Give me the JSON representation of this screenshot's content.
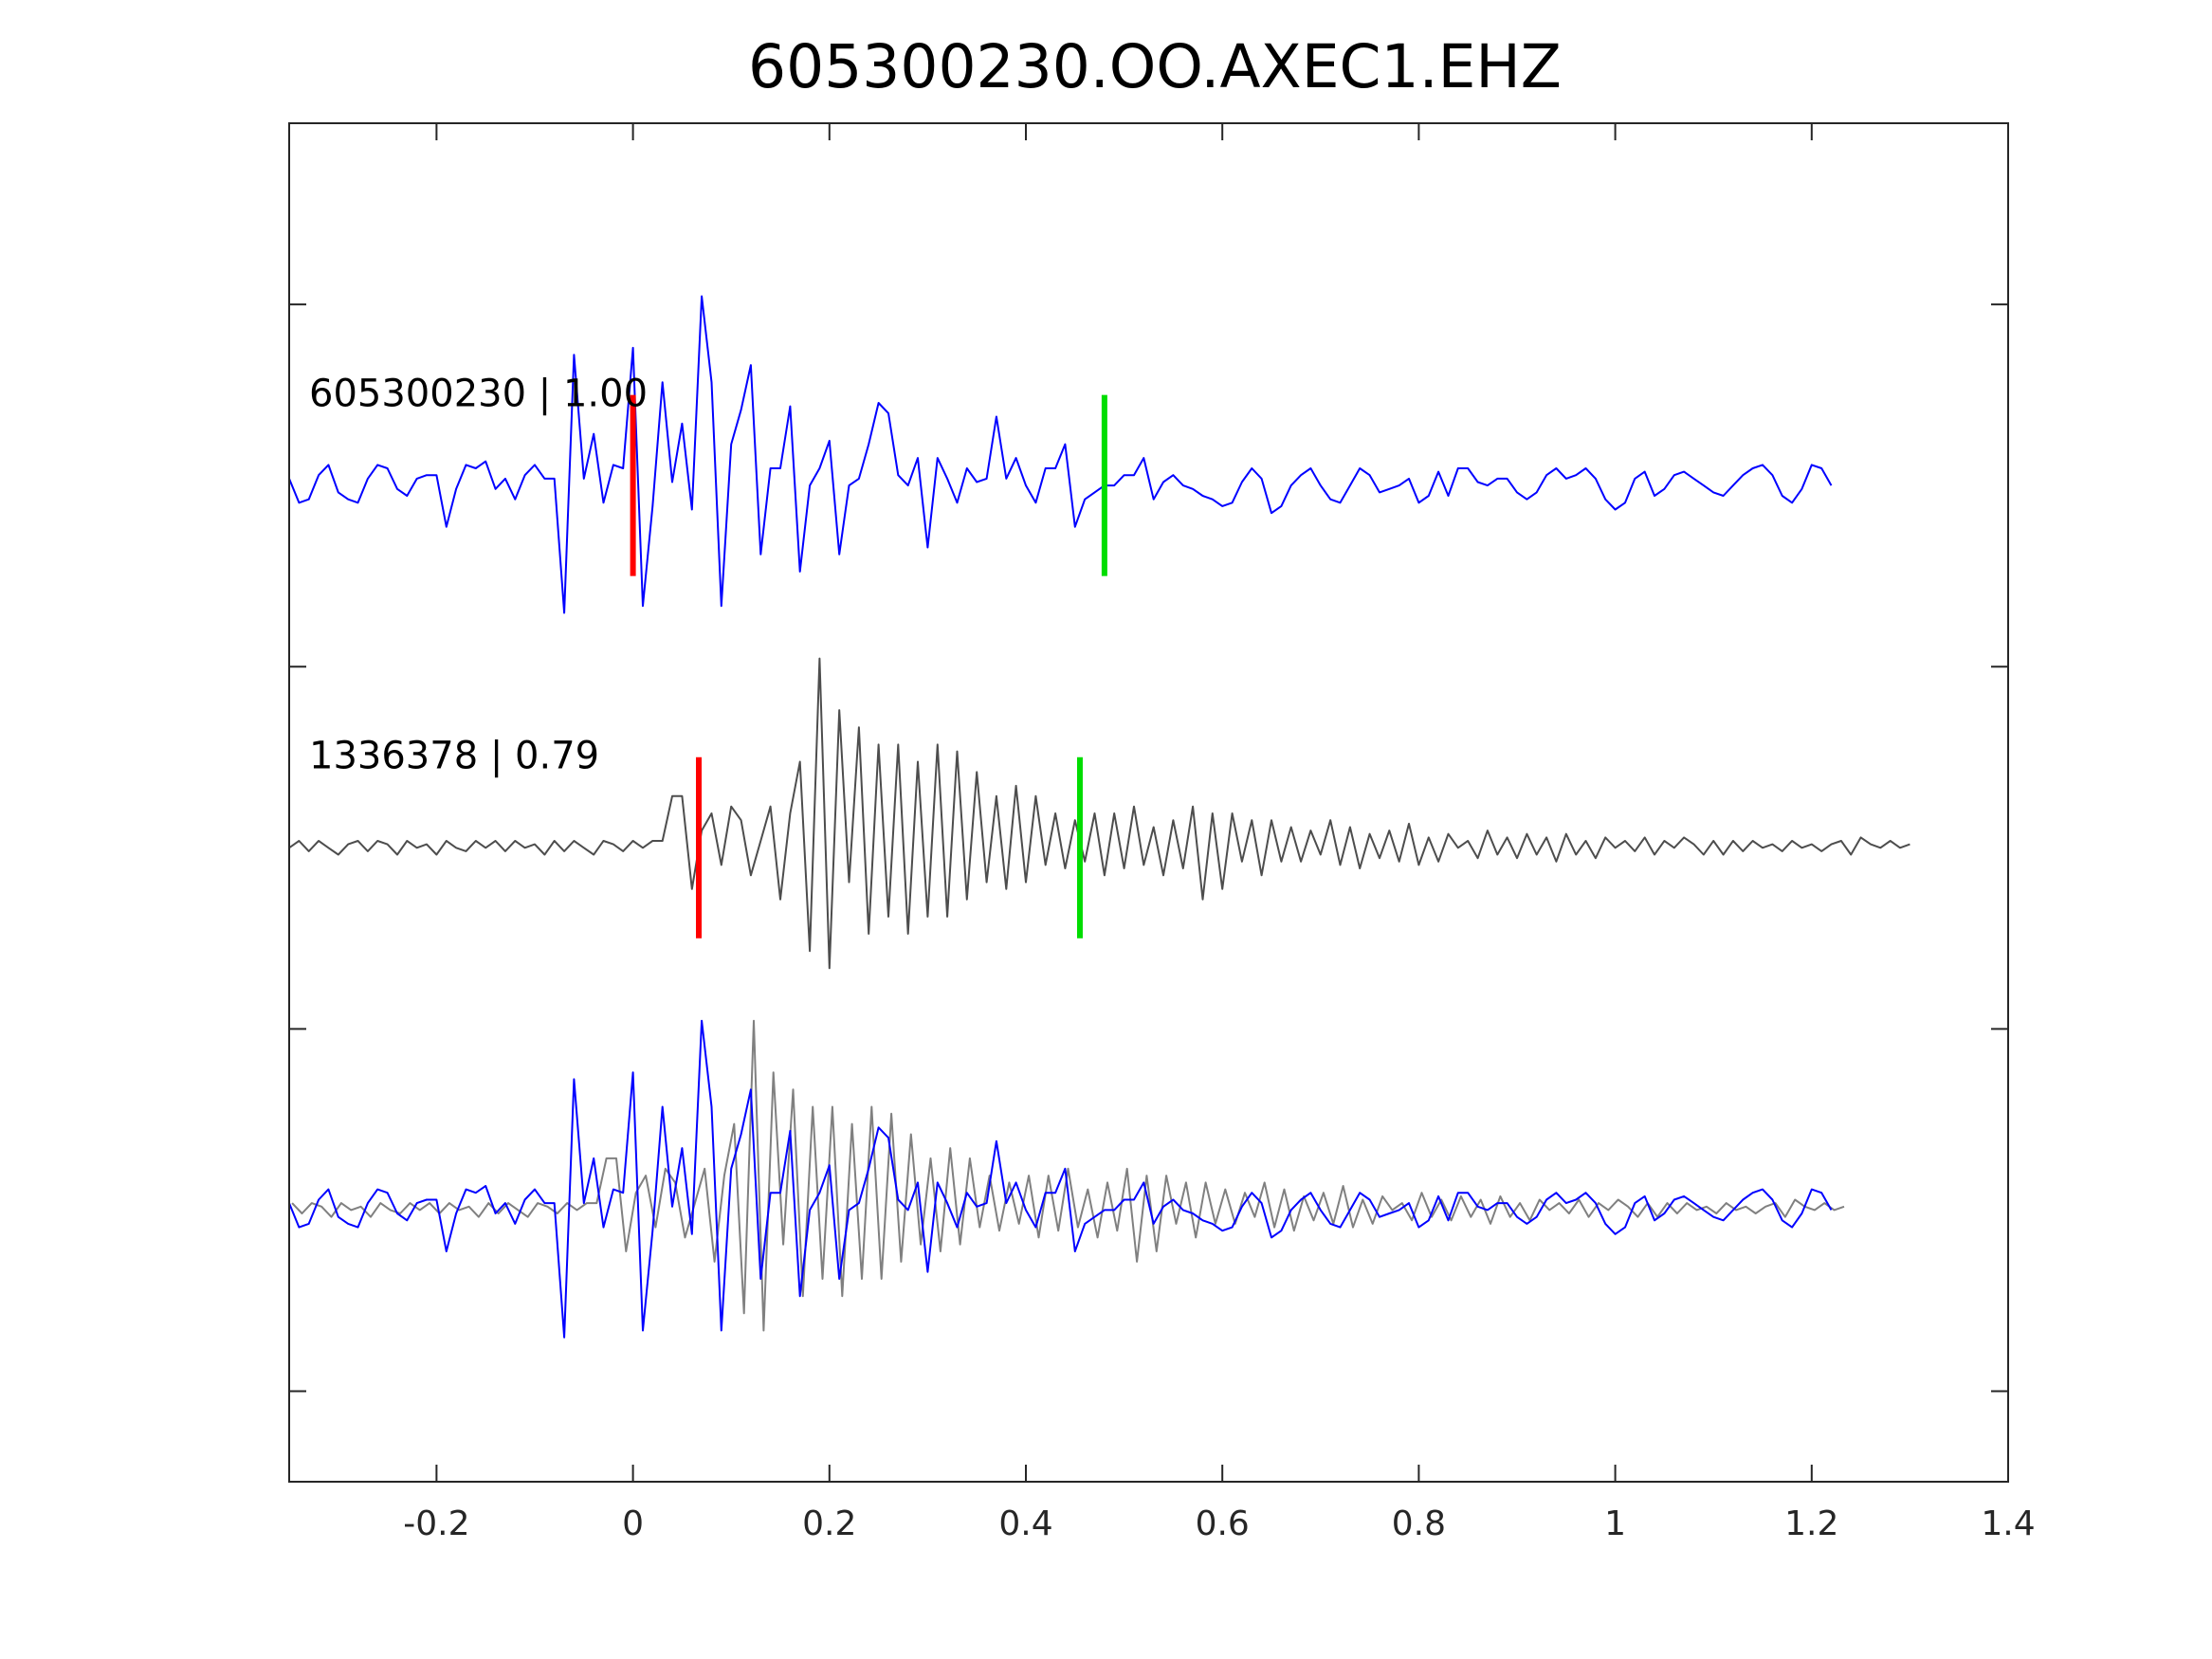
{
  "chart_data": {
    "type": "line",
    "title": "605300230.OO.AXEC1.EHZ",
    "xlabel": "",
    "ylabel": "",
    "xlim": [
      -0.35,
      1.4
    ],
    "ylim": [
      0,
      3.75
    ],
    "x_ticks": [
      -0.2,
      0,
      0.2,
      0.4,
      0.6,
      0.8,
      1,
      1.2,
      1.4
    ],
    "x_tick_labels": [
      "-0.2",
      "0",
      "0.2",
      "0.4",
      "0.6",
      "0.8",
      "1",
      "1.2",
      "1.4"
    ],
    "y_ticks": [
      0.25,
      1.25,
      2.25,
      3.25
    ],
    "grid": false,
    "colors": {
      "template": "#0000ff",
      "match": "#4d4d4d",
      "match_overlay": "#808080",
      "p_pick": "#ff0000",
      "s_pick": "#00dd00"
    },
    "traces": [
      {
        "name": "605300230 | 1.00",
        "baseline": 2.75,
        "color": "#0000ff",
        "x0": -0.35,
        "dt": 0.01,
        "amplitude": [
          0.02,
          -0.05,
          -0.04,
          0.03,
          0.06,
          -0.02,
          -0.04,
          -0.05,
          0.02,
          0.06,
          0.05,
          -0.01,
          -0.03,
          0.02,
          0.03,
          0.03,
          -0.12,
          -0.01,
          0.06,
          0.05,
          0.07,
          -0.01,
          0.02,
          -0.04,
          0.03,
          0.06,
          0.02,
          0.02,
          -0.37,
          0.38,
          0.02,
          0.15,
          -0.05,
          0.06,
          0.05,
          0.4,
          -0.35,
          -0.06,
          0.3,
          0.01,
          0.18,
          -0.07,
          0.55,
          0.3,
          -0.35,
          0.12,
          0.22,
          0.35,
          -0.2,
          0.05,
          0.05,
          0.23,
          -0.25,
          0.0,
          0.05,
          0.13,
          -0.2,
          0.0,
          0.02,
          0.12,
          0.24,
          0.21,
          0.03,
          0.0,
          0.08,
          -0.18,
          0.08,
          0.02,
          -0.05,
          0.05,
          0.01,
          0.02,
          0.2,
          0.02,
          0.08,
          0.0,
          -0.05,
          0.05,
          0.05,
          0.12,
          -0.12,
          -0.04,
          -0.02,
          0.0,
          0.0,
          0.03,
          0.03,
          0.08,
          -0.04,
          0.01,
          0.03,
          0.0,
          -0.01,
          -0.03,
          -0.04,
          -0.06,
          -0.05,
          0.01,
          0.05,
          0.02,
          -0.08,
          -0.06,
          0.0,
          0.03,
          0.05,
          0.0,
          -0.04,
          -0.05,
          0.0,
          0.05,
          0.03,
          -0.02,
          -0.01,
          0.0,
          0.02,
          -0.05,
          -0.03,
          0.04,
          -0.03,
          0.05,
          0.05,
          0.01,
          0.0,
          0.02,
          0.02,
          -0.02,
          -0.04,
          -0.02,
          0.03,
          0.05,
          0.02,
          0.03,
          0.05,
          0.02,
          -0.04,
          -0.07,
          -0.05,
          0.02,
          0.04,
          -0.03,
          -0.01,
          0.03,
          0.04,
          0.02,
          0.0,
          -0.02,
          -0.03,
          0.0,
          0.03,
          0.05,
          0.06,
          0.03,
          -0.03,
          -0.05,
          -0.01,
          0.06,
          0.05,
          0.0
        ],
        "p_pick": 0.0,
        "s_pick": 0.48
      },
      {
        "name": "1336378 | 0.79",
        "baseline": 1.75,
        "color": "#4d4d4d",
        "x0": -0.35,
        "dt": 0.01,
        "amplitude": [
          0.0,
          0.02,
          -0.01,
          0.02,
          0.0,
          -0.02,
          0.01,
          0.02,
          -0.01,
          0.02,
          0.01,
          -0.02,
          0.02,
          0.0,
          0.01,
          -0.02,
          0.02,
          0.0,
          -0.01,
          0.02,
          0.0,
          0.02,
          -0.01,
          0.02,
          0.0,
          0.01,
          -0.02,
          0.02,
          -0.01,
          0.02,
          0.0,
          -0.02,
          0.02,
          0.01,
          -0.01,
          0.02,
          0.0,
          0.02,
          0.02,
          0.15,
          0.15,
          -0.12,
          0.05,
          0.1,
          -0.05,
          0.12,
          0.08,
          -0.08,
          0.02,
          0.12,
          -0.15,
          0.1,
          0.25,
          -0.3,
          0.55,
          -0.35,
          0.4,
          -0.1,
          0.35,
          -0.25,
          0.3,
          -0.2,
          0.3,
          -0.25,
          0.25,
          -0.2,
          0.3,
          -0.2,
          0.28,
          -0.15,
          0.22,
          -0.1,
          0.15,
          -0.12,
          0.18,
          -0.1,
          0.15,
          -0.05,
          0.1,
          -0.06,
          0.08,
          -0.04,
          0.1,
          -0.08,
          0.1,
          -0.06,
          0.12,
          -0.05,
          0.06,
          -0.08,
          0.08,
          -0.06,
          0.12,
          -0.15,
          0.1,
          -0.12,
          0.1,
          -0.04,
          0.08,
          -0.08,
          0.08,
          -0.04,
          0.06,
          -0.04,
          0.05,
          -0.02,
          0.08,
          -0.05,
          0.06,
          -0.06,
          0.04,
          -0.03,
          0.05,
          -0.04,
          0.07,
          -0.05,
          0.03,
          -0.04,
          0.04,
          0.0,
          0.02,
          -0.03,
          0.05,
          -0.02,
          0.03,
          -0.03,
          0.04,
          -0.02,
          0.03,
          -0.04,
          0.04,
          -0.02,
          0.02,
          -0.03,
          0.03,
          0.0,
          0.02,
          -0.01,
          0.03,
          -0.02,
          0.02,
          0.0,
          0.03,
          0.01,
          -0.02,
          0.02,
          -0.02,
          0.02,
          -0.01,
          0.02,
          0.0,
          0.01,
          -0.01,
          0.02,
          0.0,
          0.01,
          -0.01,
          0.01,
          0.02,
          -0.02,
          0.03,
          0.01,
          0.0,
          0.02,
          0.0,
          0.01
        ],
        "p_pick": 0.067,
        "s_pick": 0.455
      },
      {
        "name": "",
        "baseline": 0.75,
        "overlay": true,
        "series": [
          {
            "ref": 1,
            "color": "#808080",
            "shift": -0.067
          },
          {
            "ref": 0,
            "color": "#0000ff",
            "shift": 0
          }
        ]
      }
    ]
  }
}
